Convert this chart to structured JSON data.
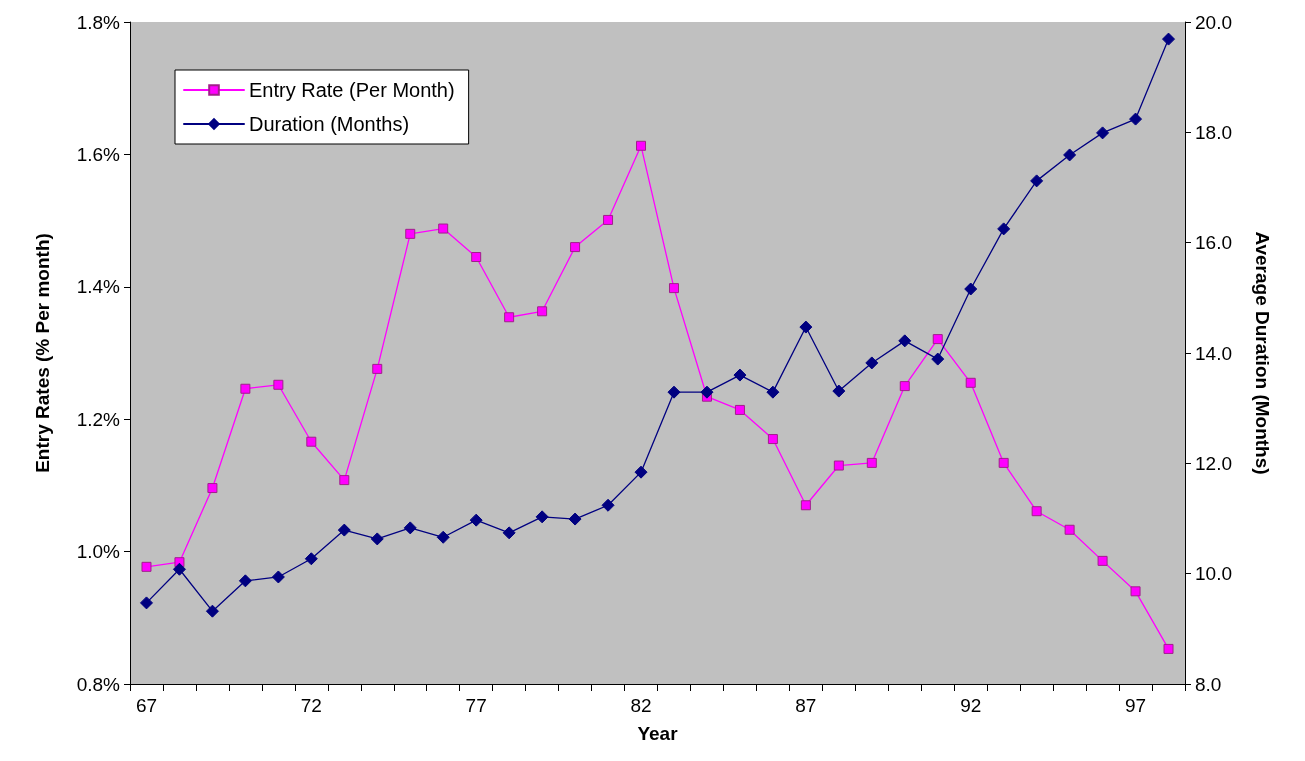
{
  "chart_data": {
    "type": "line",
    "xlabel": "Year",
    "ylabel": "Entry Rates (% Per month)",
    "y2label": "Average Duration (Months)",
    "categories": [
      "67",
      null,
      null,
      null,
      null,
      "72",
      null,
      null,
      null,
      null,
      "77",
      null,
      null,
      null,
      null,
      "82",
      null,
      null,
      null,
      null,
      "87",
      null,
      null,
      null,
      null,
      "92",
      null,
      null,
      null,
      null,
      "97",
      null
    ],
    "series": [
      {
        "name": "Entry Rate (Per Month)",
        "color": "#ff00ff",
        "marker": "square",
        "values": [
          0.977,
          0.984,
          1.096,
          1.246,
          1.252,
          1.166,
          1.108,
          1.276,
          1.48,
          1.488,
          1.445,
          1.354,
          1.363,
          1.46,
          1.501,
          1.613,
          1.398,
          1.234,
          1.214,
          1.17,
          1.07,
          1.13,
          1.134,
          1.25,
          1.321,
          1.255,
          1.134,
          1.061,
          1.033,
          0.986,
          0.94,
          0.853
        ]
      },
      {
        "name": "Duration (Months)",
        "color": "#000080",
        "marker": "diamond",
        "axis": "y2",
        "values": [
          9.47,
          10.08,
          9.32,
          9.87,
          9.94,
          10.27,
          10.79,
          10.63,
          10.83,
          10.66,
          10.97,
          10.74,
          11.03,
          10.99,
          11.24,
          11.84,
          13.29,
          13.29,
          13.6,
          13.29,
          14.47,
          13.31,
          13.82,
          14.22,
          13.89,
          15.16,
          16.25,
          17.12,
          17.59,
          17.99,
          18.24,
          19.69
        ]
      }
    ],
    "ylim": [
      0.8,
      1.8
    ],
    "yticks": [
      {
        "value": 0.8,
        "label": "0.8%"
      },
      {
        "value": 1.0,
        "label": "1.0%"
      },
      {
        "value": 1.2,
        "label": "1.2%"
      },
      {
        "value": 1.4,
        "label": "1.4%"
      },
      {
        "value": 1.6,
        "label": "1.6%"
      },
      {
        "value": 1.8,
        "label": "1.8%"
      }
    ],
    "y2lim": [
      8,
      20
    ],
    "y2ticks": [
      {
        "value": 8,
        "label": "8.0"
      },
      {
        "value": 10,
        "label": "10.0"
      },
      {
        "value": 12,
        "label": "12.0"
      },
      {
        "value": 14,
        "label": "14.0"
      },
      {
        "value": 16,
        "label": "16.0"
      },
      {
        "value": 18,
        "label": "18.0"
      },
      {
        "value": 20,
        "label": "20.0"
      }
    ],
    "grid": false,
    "legend": "top left",
    "line_style": "solid"
  }
}
